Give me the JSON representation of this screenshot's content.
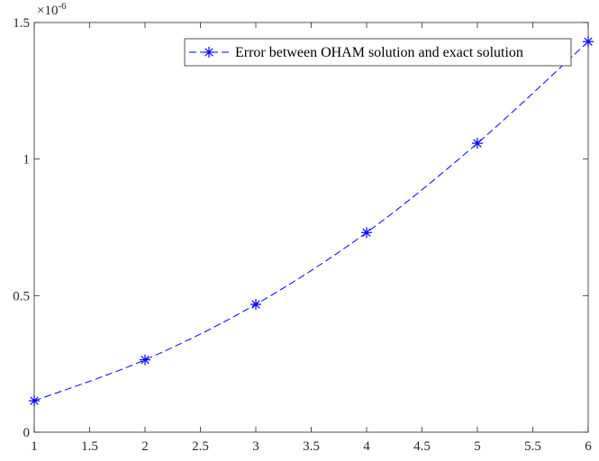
{
  "chart_data": {
    "type": "line",
    "title": "",
    "xlabel": "",
    "ylabel": "",
    "xlim": [
      1,
      6
    ],
    "ylim": [
      0,
      1.5
    ],
    "y_multiplier_label": "×10",
    "y_multiplier_exponent": "-6",
    "x_ticks": [
      "1",
      "1.5",
      "2",
      "2.5",
      "3",
      "3.5",
      "4",
      "4.5",
      "5",
      "5.5",
      "6"
    ],
    "y_ticks": [
      "0",
      "0.5",
      "1",
      "1.5"
    ],
    "series": [
      {
        "name": "Error between OHAM solution and exact solution",
        "color": "#0000ff",
        "line_style": "dashed",
        "marker": "asterisk",
        "x": [
          1,
          2,
          3,
          4,
          5,
          6
        ],
        "y": [
          0.115,
          0.265,
          0.468,
          0.731,
          1.058,
          1.43
        ]
      }
    ],
    "grid": false,
    "legend_position": "top-right"
  }
}
